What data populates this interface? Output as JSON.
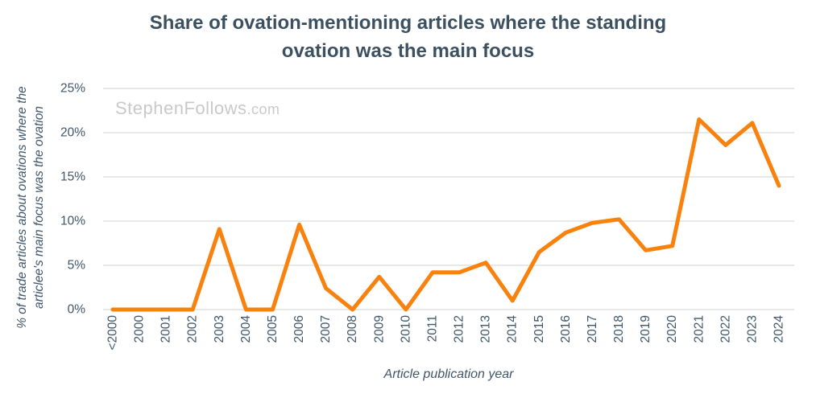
{
  "watermark": {
    "main": "StephenFollows",
    "suffix": ".com"
  },
  "chart_data": {
    "type": "line",
    "title": "Share of ovation-mentioning articles where the standing ovation was the main focus",
    "xlabel": "Article publication year",
    "ylabel": "% of trade articles about ovations where the articlee's main focus was the ovation",
    "categories": [
      "<2000",
      "2000",
      "2001",
      "2002",
      "2003",
      "2004",
      "2005",
      "2006",
      "2007",
      "2008",
      "2009",
      "2010",
      "2011",
      "2012",
      "2013",
      "2014",
      "2015",
      "2016",
      "2017",
      "2018",
      "2019",
      "2020",
      "2021",
      "2022",
      "2023",
      "2024"
    ],
    "values": [
      0,
      0,
      0,
      0,
      9.1,
      0,
      0,
      9.6,
      2.4,
      0,
      3.7,
      0,
      4.2,
      4.2,
      5.3,
      1.0,
      6.5,
      8.7,
      9.8,
      10.2,
      6.7,
      7.2,
      21.5,
      18.6,
      21.1,
      14.0
    ],
    "ylim": [
      0,
      25
    ],
    "ytick_step": 5,
    "ytick_suffix": "%",
    "grid": "horizontal-only",
    "legend": "none",
    "colors": {
      "line": "#F8820D",
      "gridline": "#E0E0E0",
      "tick_text": "#3F566A",
      "title_text": "#3C5060",
      "watermark_text": "#C9C9C9"
    }
  }
}
